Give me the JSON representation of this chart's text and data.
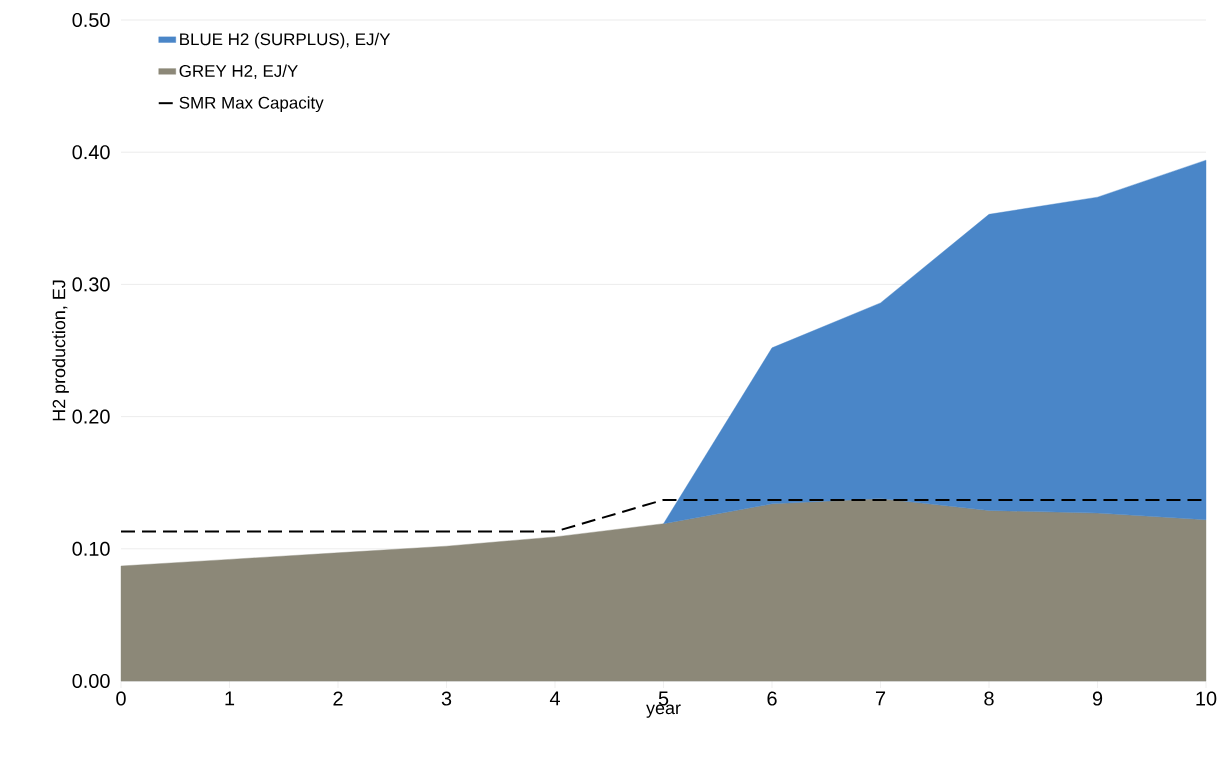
{
  "chart_data": {
    "type": "area",
    "stacked": true,
    "xlabel": "year",
    "ylabel": "H2 production, EJ",
    "x": [
      0,
      1,
      2,
      3,
      4,
      5,
      6,
      7,
      8,
      9,
      10
    ],
    "series": [
      {
        "name": "GREY H2, EJ/Y",
        "color": "#8c8878",
        "values": [
          0.087,
          0.092,
          0.097,
          0.102,
          0.109,
          0.119,
          0.134,
          0.138,
          0.129,
          0.127,
          0.122
        ]
      },
      {
        "name": "BLUE H2 (SURPLUS), EJ/Y",
        "color": "#4a86c8",
        "values": [
          null,
          null,
          null,
          null,
          null,
          0,
          0.118,
          0.148,
          0.224,
          0.239,
          0.272
        ]
      },
      {
        "name": "SMR Max Capacity",
        "type": "line",
        "color": "#000000",
        "line_style": "dashed",
        "x": [
          0,
          4,
          5,
          10
        ],
        "values": [
          0.113,
          0.113,
          0.137,
          0.137
        ]
      }
    ],
    "xlim": [
      0,
      10
    ],
    "xticks": [
      0,
      1,
      2,
      3,
      4,
      5,
      6,
      7,
      8,
      9,
      10
    ],
    "ylim": [
      0,
      0.5
    ],
    "yticks": [
      {
        "value": 0,
        "label": "0.00"
      },
      {
        "value": 0.1,
        "label": "0.10"
      },
      {
        "value": 0.2,
        "label": "0.20"
      },
      {
        "value": 0.3,
        "label": "0.30"
      },
      {
        "value": 0.4,
        "label": "0.40"
      },
      {
        "value": 0.5,
        "label": "0.50"
      }
    ],
    "grid": "y",
    "legend": "top left"
  }
}
